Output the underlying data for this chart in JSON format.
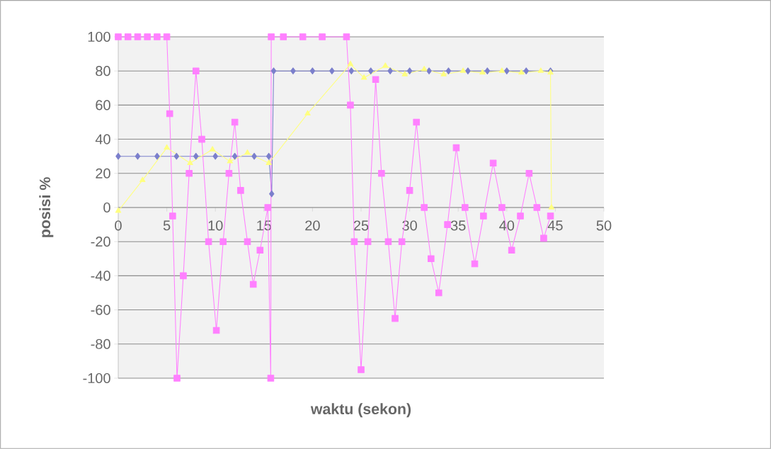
{
  "chart_data": {
    "type": "line",
    "xlabel": "waktu (sekon)",
    "ylabel": "posisi %",
    "xlim": [
      0,
      50
    ],
    "xticks": [
      0,
      5,
      10,
      15,
      20,
      25,
      30,
      35,
      40,
      45,
      50
    ],
    "ylim": [
      -100,
      100
    ],
    "yticks": [
      -100,
      -80,
      -60,
      -40,
      -20,
      0,
      20,
      40,
      60,
      80,
      100
    ],
    "grid": "y",
    "series": [
      {
        "color": "#7b7fcc",
        "marker": "diamond",
        "x": [
          0,
          2,
          4,
          6,
          8,
          10,
          12,
          14,
          15.5,
          15.8,
          16,
          18,
          20,
          22,
          24,
          26,
          28,
          30,
          32,
          34,
          36,
          38,
          40,
          42,
          44.5
        ],
        "values": [
          30,
          30,
          30,
          30,
          30,
          30,
          30,
          30,
          30,
          8,
          80,
          80,
          80,
          80,
          80,
          80,
          80,
          80,
          80,
          80,
          80,
          80,
          80,
          80,
          80
        ]
      },
      {
        "color": "#ff80ff",
        "marker": "square",
        "x": [
          0,
          1,
          2,
          3,
          4,
          5,
          5.3,
          5.6,
          6.05,
          6.7,
          7.3,
          8.0,
          8.6,
          9.3,
          10.1,
          10.8,
          11.4,
          12.0,
          12.6,
          13.3,
          13.9,
          14.6,
          15.4,
          15.7,
          15.75,
          17,
          19,
          21,
          23.5,
          23.9,
          24.3,
          25.0,
          25.7,
          26.5,
          27.1,
          27.8,
          28.5,
          29.2,
          30.0,
          30.7,
          31.5,
          32.2,
          33.0,
          33.9,
          34.8,
          35.7,
          36.7,
          37.6,
          38.6,
          39.5,
          40.5,
          41.4,
          42.3,
          43.1,
          43.8,
          44.5
        ],
        "values": [
          100,
          100,
          100,
          100,
          100,
          100,
          55,
          -5,
          -100,
          -40,
          20,
          80,
          40,
          -20,
          -72,
          -20,
          20,
          50,
          10,
          -20,
          -45,
          -25,
          0,
          -100,
          100,
          100,
          100,
          100,
          100,
          60,
          -20,
          -95,
          -20,
          75,
          20,
          -20,
          -65,
          -20,
          10,
          50,
          0,
          -30,
          -50,
          -10,
          35,
          0,
          -33,
          -5,
          26,
          0,
          -25,
          -5,
          20,
          0,
          -18,
          -5
        ]
      },
      {
        "color": "#ffff80",
        "marker": "triangle",
        "x": [
          0,
          2.5,
          5.0,
          7.4,
          9.7,
          11.5,
          13.3,
          15.5,
          19.5,
          23.9,
          25.3,
          27.5,
          29.5,
          31.5,
          33.5,
          35.5,
          37.5,
          39.5,
          41.5,
          43.5,
          44.5,
          44.6
        ],
        "values": [
          -2,
          16,
          35,
          26,
          34,
          27,
          32,
          26,
          55,
          84,
          76,
          83,
          78,
          81,
          78,
          80,
          79,
          80,
          79,
          80,
          79,
          0
        ]
      }
    ]
  }
}
